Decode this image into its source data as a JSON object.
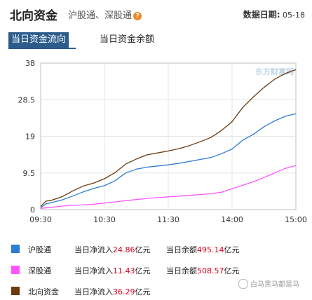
{
  "header": {
    "title": "北向资金",
    "subtitle": "沪股通、深股通",
    "help_glyph": "?",
    "date_label": "数据日期:",
    "date_value": "05-18"
  },
  "tabs": [
    {
      "label": "当日资金流向",
      "active": true
    },
    {
      "label": "当日资金余额",
      "active": false
    }
  ],
  "watermark_chart": "东方财富网",
  "watermark_bottom": "白马黑马都是马",
  "legend": [
    {
      "name": "沪股通",
      "net_label": "当日净流入",
      "net_value": "24.86",
      "net_unit": "亿元",
      "bal_label": "当日余额",
      "bal_value": "495.14",
      "bal_unit": "亿元",
      "color": "#2e7cd3"
    },
    {
      "name": "深股通",
      "net_label": "当日净流入",
      "net_value": "11.43",
      "net_unit": "亿元",
      "bal_label": "当日余额",
      "bal_value": "508.57",
      "bal_unit": "亿元",
      "color": "#ff55ff"
    },
    {
      "name": "北向资金",
      "net_label": "当日净流入",
      "net_value": "36.29",
      "net_unit": "亿元",
      "color": "#6b3a10"
    }
  ],
  "chart_data": {
    "type": "line",
    "x_ticks": [
      "09:30",
      "10:30",
      "11:30",
      "14:00",
      "15:00"
    ],
    "y_ticks": [
      "38",
      "28.5",
      "19",
      "9.5",
      "0"
    ],
    "ylim": [
      0,
      38
    ],
    "grid": true,
    "series": [
      {
        "name": "沪股通",
        "color": "#2e7cd3",
        "points": [
          [
            0,
            0.5
          ],
          [
            5,
            1.5
          ],
          [
            10,
            1.8
          ],
          [
            20,
            2.5
          ],
          [
            30,
            3.5
          ],
          [
            40,
            4.6
          ],
          [
            50,
            5.5
          ],
          [
            60,
            6.2
          ],
          [
            70,
            7.5
          ],
          [
            80,
            9.5
          ],
          [
            90,
            10.5
          ],
          [
            100,
            11.0
          ],
          [
            110,
            11.3
          ],
          [
            120,
            11.6
          ],
          [
            130,
            12.0
          ],
          [
            140,
            12.5
          ],
          [
            150,
            13.0
          ],
          [
            160,
            13.5
          ],
          [
            170,
            14.5
          ],
          [
            180,
            15.7
          ],
          [
            190,
            18.0
          ],
          [
            200,
            19.5
          ],
          [
            210,
            21.5
          ],
          [
            220,
            23.0
          ],
          [
            230,
            24.2
          ],
          [
            240,
            24.86
          ]
        ]
      },
      {
        "name": "深股通",
        "color": "#ff55ff",
        "points": [
          [
            0,
            0.3
          ],
          [
            10,
            0.6
          ],
          [
            20,
            0.9
          ],
          [
            30,
            1.1
          ],
          [
            40,
            1.2
          ],
          [
            50,
            1.4
          ],
          [
            60,
            1.7
          ],
          [
            70,
            2.0
          ],
          [
            80,
            2.3
          ],
          [
            90,
            2.6
          ],
          [
            100,
            2.9
          ],
          [
            110,
            3.1
          ],
          [
            120,
            3.3
          ],
          [
            130,
            3.5
          ],
          [
            140,
            3.7
          ],
          [
            150,
            3.9
          ],
          [
            160,
            4.1
          ],
          [
            170,
            4.5
          ],
          [
            180,
            5.4
          ],
          [
            190,
            6.3
          ],
          [
            200,
            7.2
          ],
          [
            210,
            8.3
          ],
          [
            220,
            9.5
          ],
          [
            230,
            10.7
          ],
          [
            240,
            11.43
          ]
        ]
      },
      {
        "name": "北向资金",
        "color": "#6b3a10",
        "points": [
          [
            0,
            0.8
          ],
          [
            5,
            2.2
          ],
          [
            10,
            2.4
          ],
          [
            20,
            3.3
          ],
          [
            30,
            4.8
          ],
          [
            40,
            6.1
          ],
          [
            50,
            6.9
          ],
          [
            60,
            8.0
          ],
          [
            70,
            9.6
          ],
          [
            80,
            11.8
          ],
          [
            90,
            13.1
          ],
          [
            100,
            14.2
          ],
          [
            110,
            14.7
          ],
          [
            120,
            15.2
          ],
          [
            130,
            15.8
          ],
          [
            140,
            16.6
          ],
          [
            150,
            17.6
          ],
          [
            160,
            18.7
          ],
          [
            170,
            20.5
          ],
          [
            180,
            22.8
          ],
          [
            190,
            26.5
          ],
          [
            200,
            29.2
          ],
          [
            210,
            31.7
          ],
          [
            220,
            33.8
          ],
          [
            230,
            35.3
          ],
          [
            240,
            36.29
          ]
        ]
      }
    ]
  }
}
